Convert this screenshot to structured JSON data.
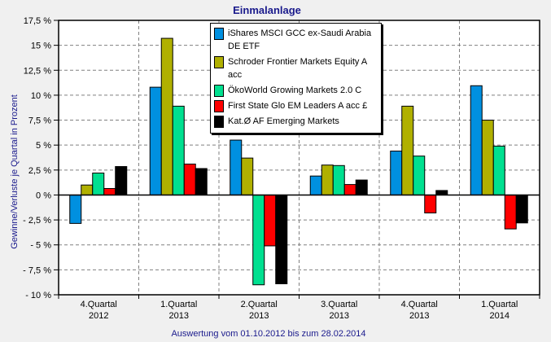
{
  "chart_data": {
    "type": "bar",
    "title": "Einmalanlage",
    "xlabel": "Auswertung vom 01.10.2012 bis zum 28.02.2014",
    "ylabel": "Gewinne/Verluste je Quartal in Prozent",
    "ylim": [
      -10,
      17.5
    ],
    "yticks": [
      -10,
      -7.5,
      -5,
      -2.5,
      0,
      2.5,
      5,
      7.5,
      10,
      12.5,
      15,
      17.5
    ],
    "ytick_labels": [
      "- 10 %",
      "- 7,5 %",
      "- 5 %",
      "- 2,5 %",
      "0 %",
      "2,5 %",
      "5 %",
      "7,5 %",
      "10 %",
      "12,5 %",
      "15 %",
      "17,5 %"
    ],
    "grid": true,
    "legend_position": "top-center",
    "categories": [
      [
        "4.Quartal",
        "2012"
      ],
      [
        "1.Quartal",
        "2013"
      ],
      [
        "2.Quartal",
        "2013"
      ],
      [
        "3.Quartal",
        "2013"
      ],
      [
        "4.Quartal",
        "2013"
      ],
      [
        "1.Quartal",
        "2014"
      ]
    ],
    "series": [
      {
        "name": "iShares MSCI GCC ex-Saudi Arabia DE ETF",
        "label_lines": [
          "iShares MSCI GCC ex-Saudi Arabia",
          "DE ETF"
        ],
        "color": "#0090e0",
        "values": [
          -2.85,
          10.8,
          5.5,
          1.9,
          4.4,
          10.95
        ]
      },
      {
        "name": "Schroder Frontier Markets Equity A acc",
        "label_lines": [
          "Schroder Frontier Markets Equity A",
          "acc"
        ],
        "color": "#b0b000",
        "values": [
          1.0,
          15.7,
          3.7,
          3.0,
          8.9,
          7.5
        ]
      },
      {
        "name": "ÖkoWorld Growing Markets 2.0 C",
        "label_lines": [
          "ÖkoWorld Growing Markets 2.0 C"
        ],
        "color": "#00e090",
        "values": [
          2.2,
          8.9,
          -9.0,
          2.95,
          3.9,
          4.9
        ]
      },
      {
        "name": "First State Glo EM Leaders A acc £",
        "label_lines": [
          "First State Glo EM Leaders A acc £"
        ],
        "color": "#ff0000",
        "values": [
          0.65,
          3.1,
          -5.1,
          1.05,
          -1.8,
          -3.4
        ]
      },
      {
        "name": "Kat.Ø AF Emerging Markets",
        "label_lines": [
          "Kat.Ø AF Emerging Markets"
        ],
        "color": "#000000",
        "values": [
          2.85,
          2.65,
          -8.9,
          1.5,
          0.45,
          -2.8
        ]
      }
    ]
  }
}
